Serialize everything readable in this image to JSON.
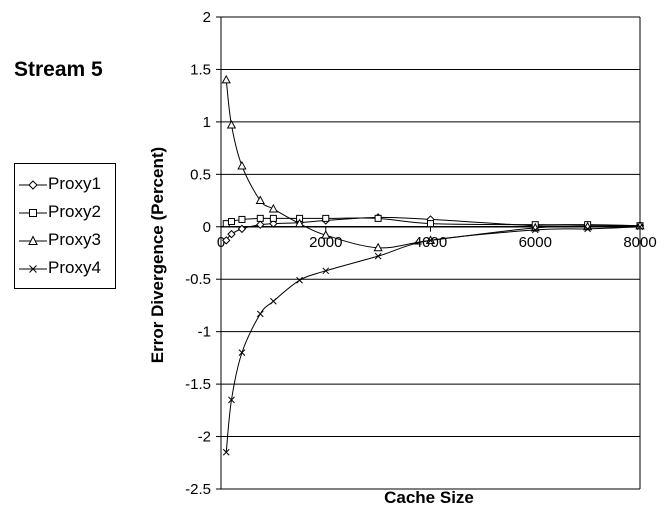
{
  "title": "Stream 5",
  "chart_data": {
    "type": "line",
    "title": "",
    "xlabel": "Cache Size",
    "ylabel": "Error Divergence (Percent)",
    "xlim": [
      0,
      8000
    ],
    "ylim": [
      -2.5,
      2
    ],
    "xticks": [
      "0",
      "2000",
      "4000",
      "6000",
      "8000"
    ],
    "yticks": [
      "2",
      "1.5",
      "1",
      "0.5",
      "0",
      "-0.5",
      "-1",
      "-1.5",
      "-2",
      "-2.5"
    ],
    "grid": "horizontal",
    "legend_position": "left",
    "series": [
      {
        "name": "Proxy1",
        "marker": "diamond",
        "x": [
          100,
          200,
          400,
          750,
          1000,
          1500,
          2000,
          3000,
          4000,
          6000,
          7000,
          8000
        ],
        "y": [
          -0.13,
          -0.07,
          -0.02,
          0.02,
          0.03,
          0.04,
          0.06,
          0.09,
          0.07,
          0.01,
          0.01,
          0.01
        ]
      },
      {
        "name": "Proxy2",
        "marker": "square",
        "x": [
          100,
          200,
          400,
          750,
          1000,
          1500,
          2000,
          3000,
          4000,
          6000,
          7000,
          8000
        ],
        "y": [
          0.03,
          0.05,
          0.07,
          0.08,
          0.08,
          0.08,
          0.08,
          0.08,
          0.03,
          0.02,
          0.02,
          0.01
        ]
      },
      {
        "name": "Proxy3",
        "marker": "triangle",
        "x": [
          100,
          200,
          400,
          750,
          1000,
          1500,
          2000,
          3000,
          4000,
          6000,
          7000,
          8000
        ],
        "y": [
          1.4,
          0.97,
          0.58,
          0.25,
          0.17,
          0.03,
          -0.08,
          -0.2,
          -0.13,
          -0.01,
          0,
          0.01
        ]
      },
      {
        "name": "Proxy4",
        "marker": "x",
        "x": [
          100,
          200,
          400,
          750,
          1000,
          1500,
          2000,
          3000,
          4000,
          6000,
          7000,
          8000
        ],
        "y": [
          -2.15,
          -1.65,
          -1.2,
          -0.83,
          -0.71,
          -0.51,
          -0.42,
          -0.28,
          -0.13,
          -0.03,
          -0.02,
          0
        ]
      }
    ]
  }
}
